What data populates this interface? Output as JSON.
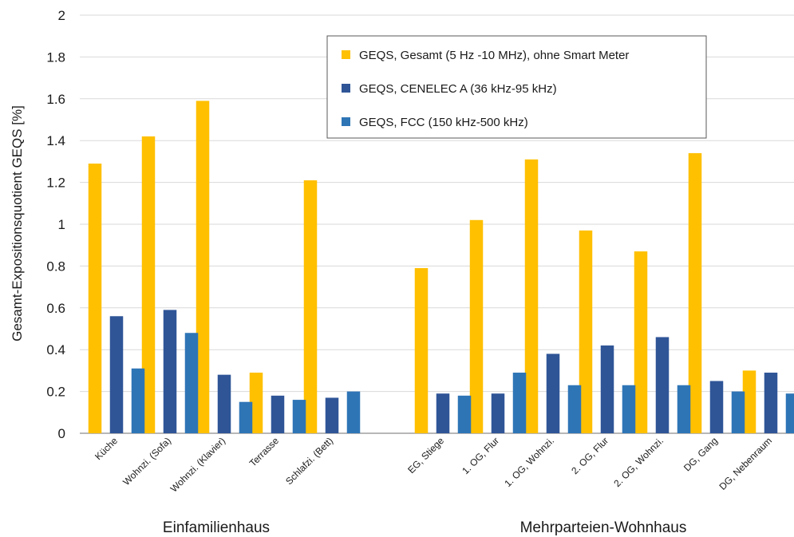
{
  "chart_data": {
    "type": "bar",
    "ylabel": "Gesamt-Expositionsquotient GEQS [%]",
    "ylim": [
      0,
      2
    ],
    "yticks": [
      "0",
      "0.2",
      "0.4",
      "0.6",
      "0.8",
      "1",
      "1.2",
      "1.4",
      "1.6",
      "1.8",
      "2"
    ],
    "grid": "horizontal",
    "legend_position": "top-right",
    "groups": [
      {
        "name": "Einfamilienhaus",
        "categories": [
          "Küche",
          "Wohnzi. (Sofa)",
          "Wohnzi. (Klavier)",
          "Terrasse",
          "Schlafzi. (Bett)"
        ]
      },
      {
        "name": "Mehrparteien-Wohnhaus",
        "categories": [
          "EG, Stiege",
          "1. OG, Flur",
          "1. OG, Wohnzi.",
          "2. OG, Flur",
          "2. OG, Wohnzi.",
          "DG, Gang",
          "DG, Nebenraum"
        ]
      }
    ],
    "series": [
      {
        "name": "GEQS, Gesamt (5 Hz -10 MHz), ohne Smart Meter",
        "color": "#FFC000",
        "values": [
          1.29,
          1.42,
          1.59,
          0.29,
          1.21,
          0.79,
          1.02,
          1.31,
          0.97,
          0.87,
          1.34,
          0.3
        ]
      },
      {
        "name": "GEQS, CENELEC A (36 kHz-95 kHz)",
        "color": "#2F5597",
        "values": [
          0.56,
          0.59,
          0.28,
          0.18,
          0.17,
          0.19,
          0.19,
          0.38,
          0.42,
          0.46,
          0.25,
          0.29
        ]
      },
      {
        "name": "GEQS, FCC  (150 kHz-500 kHz)",
        "color": "#2E75B6",
        "values": [
          0.31,
          0.48,
          0.15,
          0.16,
          0.2,
          0.18,
          0.29,
          0.23,
          0.23,
          0.23,
          0.2,
          0.19
        ]
      }
    ]
  }
}
